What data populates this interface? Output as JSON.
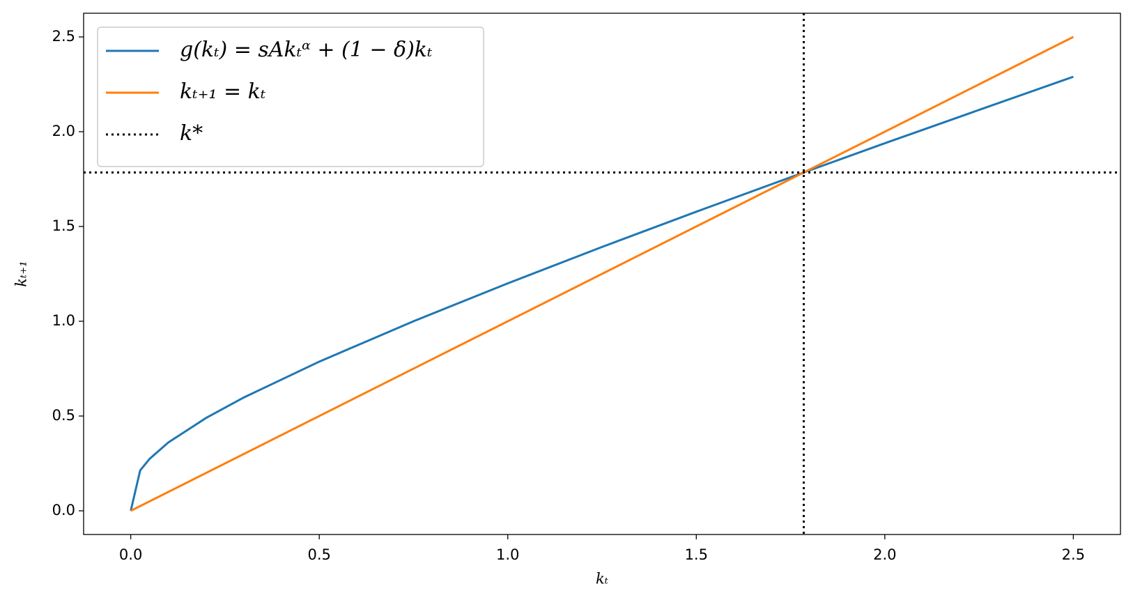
{
  "chart_data": {
    "type": "line",
    "xlabel": "kₜ",
    "ylabel": "kₜ₊₁",
    "xlim": [
      -0.125,
      2.625
    ],
    "ylim": [
      -0.125,
      2.625
    ],
    "xticks": [
      {
        "value": 0,
        "label": "0.0"
      },
      0.5,
      {
        "value": 1,
        "label": "1.0"
      },
      1.5,
      {
        "value": 2,
        "label": "2.0"
      },
      2.5
    ],
    "yticks": [
      {
        "value": 0,
        "label": "0.0"
      },
      0.5,
      {
        "value": 1,
        "label": "1.0"
      },
      1.5,
      {
        "value": 2,
        "label": "2.0"
      },
      2.5
    ],
    "grid": false,
    "legend": "upper left",
    "series": [
      {
        "name": "g(kₜ) = sAkₜᵅ + (1 − δ)kₜ",
        "color": "#1f77b4",
        "style": "solid",
        "x": [
          0,
          0.025,
          0.05,
          0.1,
          0.2,
          0.3,
          0.5,
          0.75,
          1.0,
          1.25,
          1.5,
          1.785,
          2.0,
          2.25,
          2.5
        ],
        "values": [
          0,
          0.213,
          0.274,
          0.361,
          0.49,
          0.598,
          0.787,
          1.0,
          1.2,
          1.392,
          1.578,
          1.785,
          1.939,
          2.115,
          2.29
        ]
      },
      {
        "name": "kₜ₊₁ = kₜ",
        "color": "#ff7f0e",
        "style": "solid",
        "x": [
          0,
          2.5
        ],
        "values": [
          0,
          2.5
        ]
      },
      {
        "name": "k*",
        "color": "#000000",
        "style": "dotted",
        "x": [
          1.785
        ],
        "values": [
          1.785
        ]
      }
    ]
  }
}
